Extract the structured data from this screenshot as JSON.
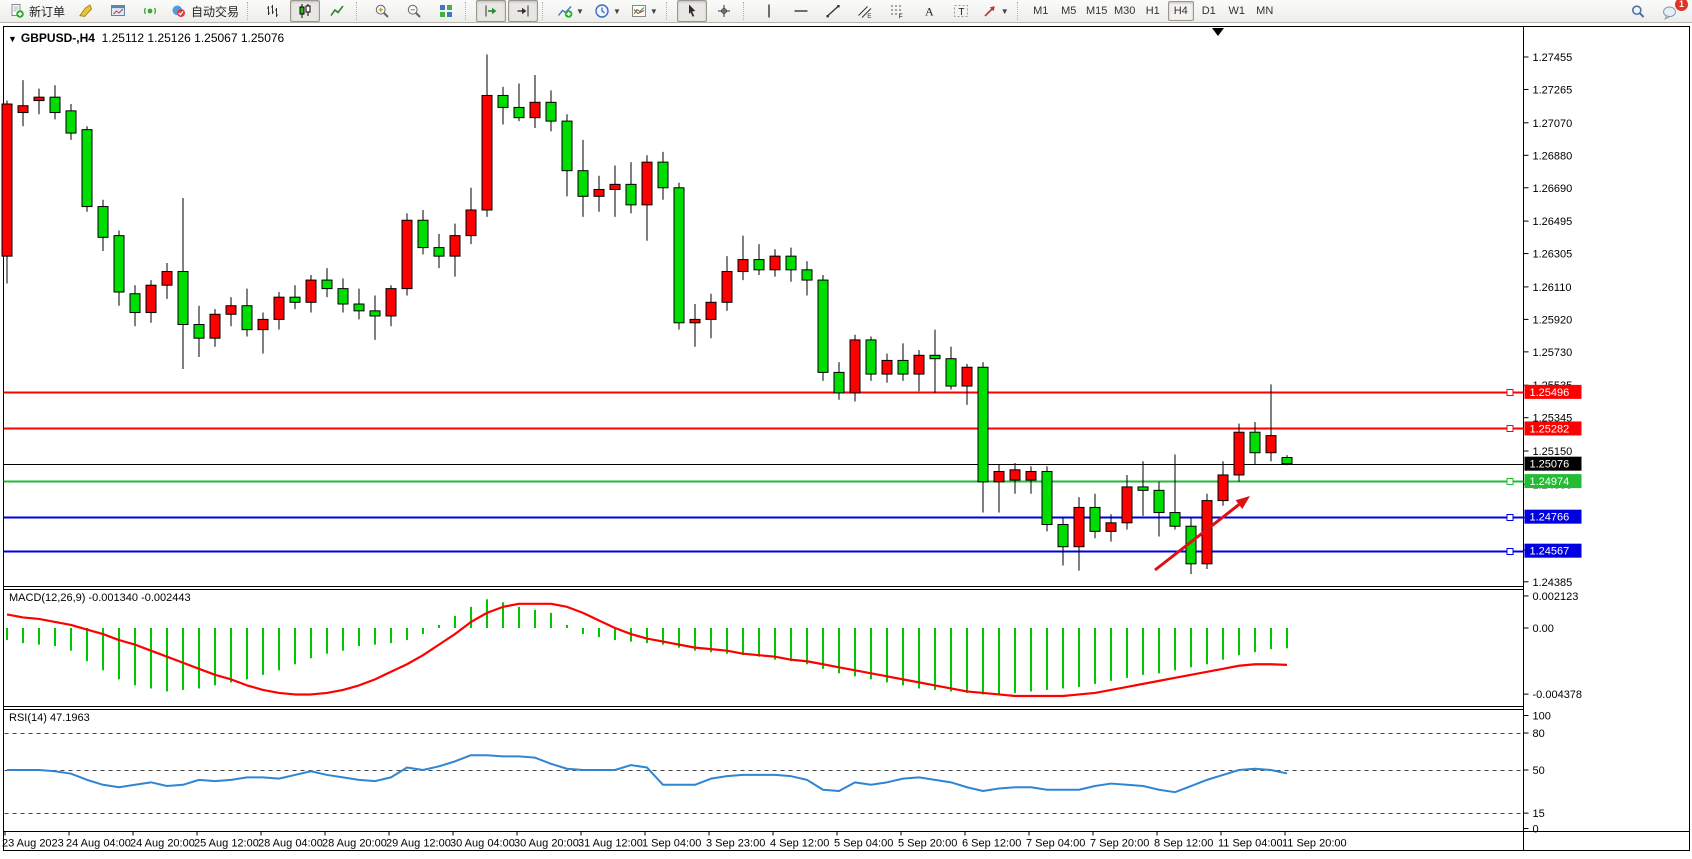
{
  "toolbar": {
    "buttons": [
      {
        "name": "new-order-button",
        "icon": "doc-plus",
        "label": "新订单"
      },
      {
        "name": "expert-editor-button",
        "icon": "chisel"
      },
      {
        "name": "market-watch-button",
        "icon": "chart-window"
      },
      {
        "name": "signals-button",
        "icon": "signal"
      },
      {
        "name": "autotrading-button",
        "icon": "autotrade",
        "label": "自动交易"
      },
      {
        "type": "sep"
      },
      {
        "name": "bar-chart-button",
        "icon": "bar-chart"
      },
      {
        "name": "candlestick-button",
        "icon": "candles",
        "active": true
      },
      {
        "name": "line-chart-button",
        "icon": "line-chart"
      },
      {
        "type": "sep"
      },
      {
        "name": "zoom-in-button",
        "icon": "zoom-in"
      },
      {
        "name": "zoom-out-button",
        "icon": "zoom-out"
      },
      {
        "name": "tile-windows-button",
        "icon": "tile"
      },
      {
        "type": "sep"
      },
      {
        "name": "auto-scroll-button",
        "icon": "auto-scroll",
        "active": true
      },
      {
        "name": "chart-shift-button",
        "icon": "chart-shift",
        "active": true
      },
      {
        "type": "sep"
      },
      {
        "name": "indicators-button",
        "icon": "indicator-plus",
        "dropdown": true
      },
      {
        "name": "periods-button",
        "icon": "clock",
        "dropdown": true
      },
      {
        "name": "templates-button",
        "icon": "template",
        "dropdown": true
      },
      {
        "type": "sep"
      },
      {
        "name": "cursor-button",
        "icon": "cursor",
        "active": true
      },
      {
        "name": "crosshair-button",
        "icon": "crosshair"
      },
      {
        "type": "sep"
      },
      {
        "name": "vertical-line-button",
        "icon": "vline"
      },
      {
        "name": "horizontal-line-button",
        "icon": "hline"
      },
      {
        "name": "trendline-button",
        "icon": "trendline"
      },
      {
        "name": "equidistant-channel-button",
        "icon": "channel"
      },
      {
        "name": "fibonacci-button",
        "icon": "fibo"
      },
      {
        "name": "text-button",
        "icon": "text-a"
      },
      {
        "name": "text-label-button",
        "icon": "label-t"
      },
      {
        "name": "arrows-button",
        "icon": "arrows",
        "dropdown": true
      },
      {
        "type": "sep"
      }
    ],
    "timeframes": {
      "options": [
        "M1",
        "M5",
        "M15",
        "M30",
        "H1",
        "H4",
        "D1",
        "W1",
        "MN"
      ],
      "active": "H4"
    },
    "right": [
      {
        "name": "search-button",
        "icon": "search"
      },
      {
        "name": "notifications-button",
        "icon": "chat",
        "badge": "1"
      }
    ]
  },
  "chart_header": {
    "collapse_glyph": "▼",
    "symbol": "GBPUSD-,H4",
    "ohlc_text": "1.25112 1.25126 1.25067 1.25076"
  },
  "indicator_labels": {
    "macd": "MACD(12,26,9) -0.001340 -0.002443",
    "rsi": "RSI(14) 47.1963"
  },
  "chart_data": [
    {
      "type": "candlestick",
      "symbol": "GBPUSD-",
      "timeframe": "H4",
      "note": "Chinese color convention: red = bullish (close>open), green = bearish",
      "up_color": "#ff0000",
      "down_color": "#00dd00",
      "ylim": [
        1.2434,
        1.2762
      ],
      "y_ticks": [
        "1.27455",
        "1.27265",
        "1.27070",
        "1.26880",
        "1.26690",
        "1.26495",
        "1.26305",
        "1.26110",
        "1.25920",
        "1.25730",
        "1.25535",
        "1.25345",
        "1.25150",
        "1.24955",
        "1.24760",
        "1.24570",
        "1.24385"
      ],
      "x_labels": [
        "23 Aug 2023",
        "24 Aug 04:00",
        "24 Aug 20:00",
        "25 Aug 12:00",
        "28 Aug 04:00",
        "28 Aug 20:00",
        "29 Aug 12:00",
        "30 Aug 04:00",
        "30 Aug 20:00",
        "31 Aug 12:00",
        "1 Sep 04:00",
        "3 Sep 23:00",
        "4 Sep 12:00",
        "5 Sep 04:00",
        "5 Sep 20:00",
        "6 Sep 12:00",
        "7 Sep 04:00",
        "7 Sep 20:00",
        "8 Sep 12:00",
        "11 Sep 04:00",
        "11 Sep 20:00"
      ],
      "last_candle": {
        "open": "1.25112",
        "high": "1.25126",
        "low": "1.25067",
        "close": "1.25076"
      },
      "hlines": [
        {
          "price": 1.25496,
          "label": "1.25496",
          "color": "#ff0000",
          "width": 2
        },
        {
          "price": 1.25282,
          "label": "1.25282",
          "color": "#ff0000",
          "width": 2
        },
        {
          "price": 1.25076,
          "label": "1.25076",
          "color": "#000000",
          "width": 1
        },
        {
          "price": 1.24974,
          "label": "1.24974",
          "color": "#22bb33",
          "width": 2
        },
        {
          "price": 1.24766,
          "label": "1.24766",
          "color": "#0000e0",
          "width": 2
        },
        {
          "price": 1.24567,
          "label": "1.24567",
          "color": "#0000e0",
          "width": 2
        }
      ],
      "annotation_arrow": {
        "from": [
          1155,
          570
        ],
        "to": [
          1250,
          496
        ],
        "color": "#dd1111"
      },
      "candles": [
        [
          1.2629,
          1.272,
          1.2613,
          1.2718
        ],
        [
          1.2713,
          1.2732,
          1.2705,
          1.2717
        ],
        [
          1.272,
          1.2727,
          1.2712,
          1.2722
        ],
        [
          1.2722,
          1.2729,
          1.2709,
          1.2713
        ],
        [
          1.2714,
          1.2718,
          1.2697,
          1.2701
        ],
        [
          1.2703,
          1.2705,
          1.2655,
          1.2658
        ],
        [
          1.2658,
          1.2662,
          1.2632,
          1.264
        ],
        [
          1.2641,
          1.2644,
          1.26,
          1.2608
        ],
        [
          1.2607,
          1.2612,
          1.2588,
          1.2596
        ],
        [
          1.2596,
          1.2615,
          1.259,
          1.2612
        ],
        [
          1.2612,
          1.2625,
          1.2604,
          1.262
        ],
        [
          1.262,
          1.2663,
          1.2563,
          1.2589
        ],
        [
          1.2589,
          1.26,
          1.257,
          1.2581
        ],
        [
          1.2581,
          1.2598,
          1.2576,
          1.2595
        ],
        [
          1.2595,
          1.2605,
          1.2588,
          1.26
        ],
        [
          1.26,
          1.261,
          1.2582,
          1.2586
        ],
        [
          1.2586,
          1.2596,
          1.2572,
          1.2592
        ],
        [
          1.2592,
          1.2608,
          1.2586,
          1.2605
        ],
        [
          1.2605,
          1.2612,
          1.2598,
          1.2602
        ],
        [
          1.2602,
          1.2618,
          1.2596,
          1.2615
        ],
        [
          1.2615,
          1.2622,
          1.2605,
          1.261
        ],
        [
          1.261,
          1.2616,
          1.2596,
          1.2601
        ],
        [
          1.2601,
          1.261,
          1.2592,
          1.2597
        ],
        [
          1.2597,
          1.2606,
          1.258,
          1.2594
        ],
        [
          1.2594,
          1.2612,
          1.2588,
          1.261
        ],
        [
          1.261,
          1.2654,
          1.2606,
          1.265
        ],
        [
          1.265,
          1.2656,
          1.263,
          1.2634
        ],
        [
          1.2634,
          1.2642,
          1.2622,
          1.2629
        ],
        [
          1.2629,
          1.2648,
          1.2617,
          1.2641
        ],
        [
          1.2641,
          1.2669,
          1.2636,
          1.2656
        ],
        [
          1.2656,
          1.2747,
          1.2652,
          1.2723
        ],
        [
          1.2723,
          1.2728,
          1.2706,
          1.2716
        ],
        [
          1.2716,
          1.273,
          1.2708,
          1.271
        ],
        [
          1.271,
          1.2735,
          1.2704,
          1.2719
        ],
        [
          1.2719,
          1.2726,
          1.2702,
          1.2708
        ],
        [
          1.2708,
          1.2712,
          1.2664,
          1.2679
        ],
        [
          1.2679,
          1.2697,
          1.2652,
          1.2664
        ],
        [
          1.2664,
          1.2676,
          1.2655,
          1.2668
        ],
        [
          1.2668,
          1.2682,
          1.2652,
          1.2671
        ],
        [
          1.2671,
          1.2684,
          1.2654,
          1.2659
        ],
        [
          1.2659,
          1.2688,
          1.2638,
          1.2684
        ],
        [
          1.2684,
          1.269,
          1.2662,
          1.2669
        ],
        [
          1.2669,
          1.2672,
          1.2586,
          1.259
        ],
        [
          1.259,
          1.2601,
          1.2576,
          1.2592
        ],
        [
          1.2592,
          1.2607,
          1.2581,
          1.2602
        ],
        [
          1.2602,
          1.2629,
          1.2597,
          1.262
        ],
        [
          1.262,
          1.2641,
          1.2615,
          1.2627
        ],
        [
          1.2627,
          1.2636,
          1.2618,
          1.2621
        ],
        [
          1.2621,
          1.2633,
          1.2617,
          1.2629
        ],
        [
          1.2629,
          1.2634,
          1.2614,
          1.2621
        ],
        [
          1.2621,
          1.2626,
          1.2606,
          1.2615
        ],
        [
          1.2615,
          1.2618,
          1.2556,
          1.2561
        ],
        [
          1.2561,
          1.2567,
          1.2545,
          1.2549
        ],
        [
          1.2549,
          1.2583,
          1.2544,
          1.258
        ],
        [
          1.258,
          1.2582,
          1.2556,
          1.256
        ],
        [
          1.256,
          1.2572,
          1.2555,
          1.2568
        ],
        [
          1.2568,
          1.2578,
          1.2556,
          1.256
        ],
        [
          1.256,
          1.2574,
          1.255,
          1.2571
        ],
        [
          1.2571,
          1.2586,
          1.2549,
          1.2569
        ],
        [
          1.2569,
          1.2576,
          1.2551,
          1.2553
        ],
        [
          1.2553,
          1.2566,
          1.2542,
          1.2564
        ],
        [
          1.2564,
          1.2567,
          1.2479,
          1.2497
        ],
        [
          1.2497,
          1.2507,
          1.2479,
          1.2503
        ],
        [
          1.2498,
          1.2508,
          1.249,
          1.2504
        ],
        [
          1.2498,
          1.2506,
          1.249,
          1.2503
        ],
        [
          1.2503,
          1.2506,
          1.2468,
          1.2472
        ],
        [
          1.2472,
          1.2476,
          1.2448,
          1.2459
        ],
        [
          1.2459,
          1.2488,
          1.2445,
          1.2482
        ],
        [
          1.2482,
          1.249,
          1.2464,
          1.2468
        ],
        [
          1.2468,
          1.2478,
          1.2462,
          1.2473
        ],
        [
          1.2473,
          1.2501,
          1.2469,
          1.2494
        ],
        [
          1.2494,
          1.2509,
          1.2477,
          1.2492
        ],
        [
          1.2492,
          1.2497,
          1.2465,
          1.2479
        ],
        [
          1.2479,
          1.2513,
          1.2469,
          1.2471
        ],
        [
          1.2471,
          1.2476,
          1.2443,
          1.2449
        ],
        [
          1.2449,
          1.249,
          1.2446,
          1.2486
        ],
        [
          1.2486,
          1.2509,
          1.2483,
          1.2501
        ],
        [
          1.2501,
          1.2531,
          1.2497,
          1.2526
        ],
        [
          1.2526,
          1.2532,
          1.2507,
          1.2514
        ],
        [
          1.2514,
          1.2554,
          1.2509,
          1.2524
        ],
        [
          1.25112,
          1.25126,
          1.25067,
          1.25076
        ]
      ]
    },
    {
      "type": "macd",
      "title": "MACD(12,26,9)",
      "current_values": [
        "-0.001340",
        "-0.002443"
      ],
      "y_ticks": [
        "0.002123",
        "0.00",
        "-0.004378"
      ],
      "histogram_color": "#00c800",
      "signal_color": "#ff0000",
      "histogram": [
        -0.0008,
        -0.001,
        -0.0011,
        -0.0012,
        -0.0015,
        -0.0022,
        -0.0028,
        -0.0034,
        -0.0038,
        -0.004,
        -0.0042,
        -0.0041,
        -0.004,
        -0.0038,
        -0.0036,
        -0.0034,
        -0.0031,
        -0.0028,
        -0.0024,
        -0.002,
        -0.0017,
        -0.0015,
        -0.0012,
        -0.0011,
        -0.001,
        -0.0008,
        -0.0004,
        0.0002,
        0.0008,
        0.0014,
        0.0019,
        0.0017,
        0.0014,
        0.0012,
        0.001,
        0.0002,
        -0.0004,
        -0.0006,
        -0.0008,
        -0.0009,
        -0.001,
        -0.0011,
        -0.0013,
        -0.0015,
        -0.0016,
        -0.0017,
        -0.0018,
        -0.0019,
        -0.0021,
        -0.0022,
        -0.0024,
        -0.0027,
        -0.003,
        -0.0032,
        -0.0034,
        -0.0036,
        -0.0038,
        -0.004,
        -0.0041,
        -0.0042,
        -0.0043,
        -0.0044,
        -0.0044,
        -0.0043,
        -0.0042,
        -0.0041,
        -0.004,
        -0.0039,
        -0.0037,
        -0.0035,
        -0.0033,
        -0.0031,
        -0.003,
        -0.0028,
        -0.0026,
        -0.0024,
        -0.0021,
        -0.0018,
        -0.0016,
        -0.0014,
        -0.00134
      ],
      "signal": [
        0.0009,
        0.0007,
        0.0006,
        0.0004,
        0.0002,
        -0.0001,
        -0.0004,
        -0.0008,
        -0.0011,
        -0.0015,
        -0.0019,
        -0.0023,
        -0.0027,
        -0.0031,
        -0.0034,
        -0.0038,
        -0.0041,
        -0.0043,
        -0.0044,
        -0.0044,
        -0.0043,
        -0.0041,
        -0.0038,
        -0.0034,
        -0.0029,
        -0.0024,
        -0.0018,
        -0.0011,
        -0.0004,
        0.0004,
        0.001,
        0.0014,
        0.0016,
        0.0016,
        0.0016,
        0.0014,
        0.001,
        0.0005,
        0.0,
        -0.0004,
        -0.0007,
        -0.0009,
        -0.0011,
        -0.0013,
        -0.0014,
        -0.0015,
        -0.0017,
        -0.0018,
        -0.0019,
        -0.0021,
        -0.0022,
        -0.0024,
        -0.0026,
        -0.0028,
        -0.003,
        -0.0032,
        -0.0034,
        -0.0036,
        -0.0038,
        -0.004,
        -0.0042,
        -0.0043,
        -0.0044,
        -0.0045,
        -0.0045,
        -0.0045,
        -0.0045,
        -0.0044,
        -0.0043,
        -0.0041,
        -0.0039,
        -0.0037,
        -0.0035,
        -0.0033,
        -0.0031,
        -0.0029,
        -0.0027,
        -0.0025,
        -0.0024,
        -0.0024,
        -0.002443
      ]
    },
    {
      "type": "rsi",
      "title": "RSI(14)",
      "current_value": "47.1963",
      "levels": [
        80,
        50,
        15
      ],
      "y_ticks": [
        "100",
        "80",
        "50",
        "15",
        "0"
      ],
      "line_color": "#2e86d3",
      "series": [
        50,
        50,
        50,
        49,
        47,
        42,
        38,
        36,
        38,
        40,
        37,
        38,
        42,
        41,
        42,
        44,
        44,
        43,
        46,
        49,
        46,
        44,
        42,
        41,
        44,
        52,
        50,
        53,
        57,
        62,
        62,
        61,
        61,
        60,
        55,
        51,
        50,
        50,
        50,
        54,
        52,
        38,
        38,
        38,
        43,
        45,
        46,
        46,
        46,
        45,
        42,
        34,
        33,
        40,
        38,
        40,
        43,
        44,
        42,
        40,
        36,
        33,
        35,
        36,
        36,
        34,
        34,
        34,
        37,
        39,
        38,
        37,
        34,
        32,
        37,
        42,
        46,
        50,
        51,
        50,
        47.1963
      ]
    }
  ]
}
